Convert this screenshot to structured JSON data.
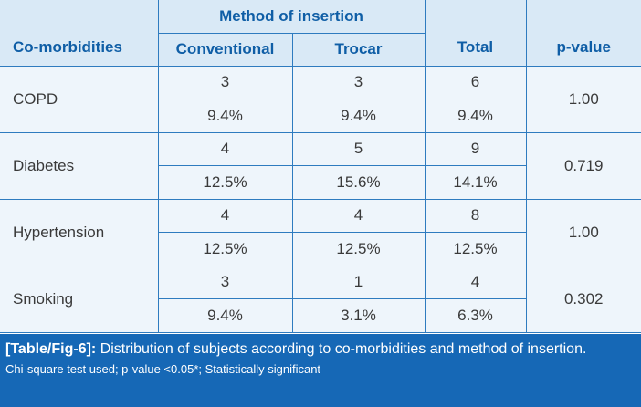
{
  "table": {
    "headers": {
      "comorbidities": "Co-morbidities",
      "method": "Method of insertion",
      "conventional": "Conventional",
      "trocar": "Trocar",
      "total": "Total",
      "pvalue": "p-value"
    },
    "rows": [
      {
        "name": "COPD",
        "conventional_n": "3",
        "trocar_n": "3",
        "total_n": "6",
        "conventional_pct": "9.4%",
        "trocar_pct": "9.4%",
        "total_pct": "9.4%",
        "p": "1.00"
      },
      {
        "name": "Diabetes",
        "conventional_n": "4",
        "trocar_n": "5",
        "total_n": "9",
        "conventional_pct": "12.5%",
        "trocar_pct": "15.6%",
        "total_pct": "14.1%",
        "p": "0.719"
      },
      {
        "name": "Hypertension",
        "conventional_n": "4",
        "trocar_n": "4",
        "total_n": "8",
        "conventional_pct": "12.5%",
        "trocar_pct": "12.5%",
        "total_pct": "12.5%",
        "p": "1.00"
      },
      {
        "name": "Smoking",
        "conventional_n": "3",
        "trocar_n": "1",
        "total_n": "4",
        "conventional_pct": "9.4%",
        "trocar_pct": "3.1%",
        "total_pct": "6.3%",
        "p": "0.302"
      }
    ]
  },
  "caption": {
    "label": "[Table/Fig-6]:",
    "text": " Distribution of subjects according to co-morbidities and method of insertion.",
    "note": "Chi-square test used; p-value <0.05*; Statistically significant"
  },
  "colors": {
    "border": "#2e7bbf",
    "header_bg": "#d9e9f6",
    "cell_bg": "#eef5fb",
    "header_text": "#0f5ea6",
    "caption_bg": "#1668b6"
  }
}
